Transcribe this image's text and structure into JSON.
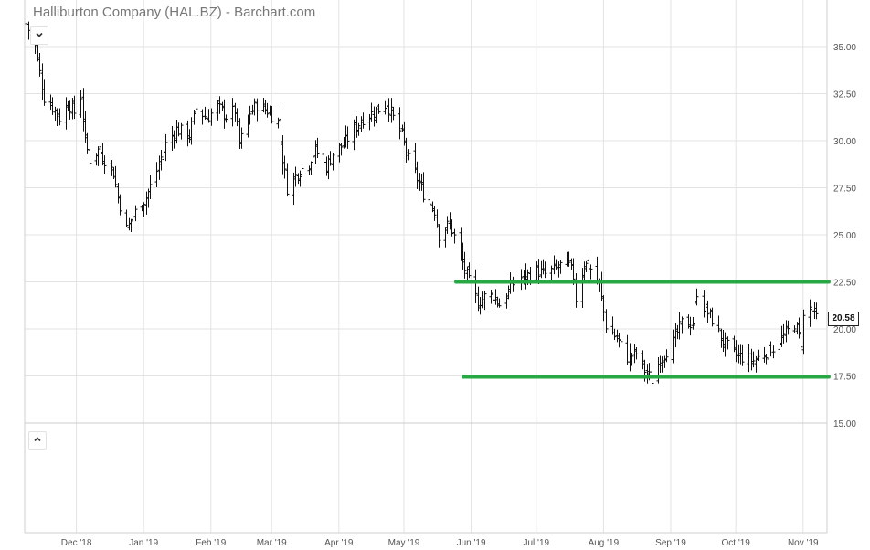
{
  "title": "Halliburton Company (HAL.BZ) - Barchart.com",
  "last_price_label": "20.58",
  "icons": {
    "collapse_top": "chevron-down-icon",
    "collapse_bottom": "chevron-up-icon"
  },
  "colors": {
    "support_resistance": "#27a844",
    "bars": "#111111",
    "grid": "#e3e3e3",
    "axis_text": "#555555"
  },
  "chart_data": {
    "type": "ohlc",
    "title": "Halliburton Company (HAL.BZ) - Barchart.com",
    "xlabel": "",
    "ylabel": "",
    "x_tick_labels": [
      "Dec '18",
      "Jan '19",
      "Feb '19",
      "Mar '19",
      "Apr '19",
      "May '19",
      "Jun '19",
      "Jul '19",
      "Aug '19",
      "Sep '19",
      "Oct '19",
      "Nov '19"
    ],
    "y_tick_labels": [
      "35.00",
      "32.50",
      "30.00",
      "27.50",
      "25.00",
      "22.50",
      "20.00",
      "17.50",
      "15.00"
    ],
    "ylim": [
      15,
      36.5
    ],
    "grid": true,
    "last_price": 20.58,
    "horizontal_lines": [
      {
        "value": 22.5,
        "from": "Jun '19"
      },
      {
        "value": 17.45,
        "from": "Jun '19"
      }
    ],
    "close_path": [
      [
        "2018-11-08",
        36.2
      ],
      [
        "2018-11-12",
        35.0
      ],
      [
        "2018-11-14",
        33.6
      ],
      [
        "2018-11-16",
        32.3
      ],
      [
        "2018-11-20",
        31.8
      ],
      [
        "2018-11-23",
        31.2
      ],
      [
        "2018-11-27",
        32.0
      ],
      [
        "2018-11-30",
        31.5
      ],
      [
        "2018-12-03",
        32.4
      ],
      [
        "2018-12-05",
        30.0
      ],
      [
        "2018-12-07",
        29.0
      ],
      [
        "2018-12-11",
        29.5
      ],
      [
        "2018-12-14",
        29.0
      ],
      [
        "2018-12-18",
        28.3
      ],
      [
        "2018-12-20",
        27.0
      ],
      [
        "2018-12-24",
        25.3
      ],
      [
        "2018-12-28",
        26.2
      ],
      [
        "2019-01-02",
        27.0
      ],
      [
        "2019-01-07",
        28.4
      ],
      [
        "2019-01-11",
        29.8
      ],
      [
        "2019-01-16",
        30.6
      ],
      [
        "2019-01-22",
        30.3
      ],
      [
        "2019-01-25",
        31.7
      ],
      [
        "2019-01-30",
        31.2
      ],
      [
        "2019-02-04",
        31.8
      ],
      [
        "2019-02-08",
        31.3
      ],
      [
        "2019-02-12",
        31.6
      ],
      [
        "2019-02-14",
        29.8
      ],
      [
        "2019-02-19",
        31.5
      ],
      [
        "2019-02-22",
        31.9
      ],
      [
        "2019-02-27",
        31.6
      ],
      [
        "2019-03-04",
        31.0
      ],
      [
        "2019-03-06",
        29.0
      ],
      [
        "2019-03-08",
        27.5
      ],
      [
        "2019-03-13",
        28.3
      ],
      [
        "2019-03-18",
        28.8
      ],
      [
        "2019-03-21",
        29.5
      ],
      [
        "2019-03-26",
        28.6
      ],
      [
        "2019-03-29",
        29.3
      ],
      [
        "2019-04-03",
        29.8
      ],
      [
        "2019-04-08",
        30.6
      ],
      [
        "2019-04-12",
        31.2
      ],
      [
        "2019-04-17",
        31.5
      ],
      [
        "2019-04-23",
        32.0
      ],
      [
        "2019-04-26",
        31.2
      ],
      [
        "2019-04-30",
        30.3
      ],
      [
        "2019-05-03",
        29.0
      ],
      [
        "2019-05-07",
        28.0
      ],
      [
        "2019-05-10",
        27.2
      ],
      [
        "2019-05-15",
        26.3
      ],
      [
        "2019-05-17",
        25.0
      ],
      [
        "2019-05-22",
        25.6
      ],
      [
        "2019-05-24",
        24.9
      ],
      [
        "2019-05-28",
        23.5
      ],
      [
        "2019-05-31",
        22.5
      ],
      [
        "2019-06-04",
        21.4
      ],
      [
        "2019-06-07",
        21.7
      ],
      [
        "2019-06-11",
        21.8
      ],
      [
        "2019-06-14",
        21.3
      ],
      [
        "2019-06-18",
        22.0
      ],
      [
        "2019-06-21",
        22.6
      ],
      [
        "2019-06-26",
        22.8
      ],
      [
        "2019-07-01",
        23.1
      ],
      [
        "2019-07-05",
        22.9
      ],
      [
        "2019-07-10",
        23.2
      ],
      [
        "2019-07-15",
        23.6
      ],
      [
        "2019-07-18",
        22.8
      ],
      [
        "2019-07-19",
        21.6
      ],
      [
        "2019-07-23",
        23.5
      ],
      [
        "2019-07-26",
        23.2
      ],
      [
        "2019-07-30",
        22.3
      ],
      [
        "2019-08-02",
        20.2
      ],
      [
        "2019-08-07",
        19.5
      ],
      [
        "2019-08-12",
        18.5
      ],
      [
        "2019-08-16",
        18.7
      ],
      [
        "2019-08-20",
        17.8
      ],
      [
        "2019-08-23",
        17.3
      ],
      [
        "2019-08-27",
        18.4
      ],
      [
        "2019-09-02",
        19.3
      ],
      [
        "2019-09-06",
        20.3
      ],
      [
        "2019-09-11",
        20.3
      ],
      [
        "2019-09-13",
        22.0
      ],
      [
        "2019-09-16",
        21.2
      ],
      [
        "2019-09-20",
        20.5
      ],
      [
        "2019-09-25",
        19.3
      ],
      [
        "2019-09-30",
        18.7
      ],
      [
        "2019-10-04",
        18.5
      ],
      [
        "2019-10-09",
        18.3
      ],
      [
        "2019-10-15",
        18.8
      ],
      [
        "2019-10-18",
        19.0
      ],
      [
        "2019-10-23",
        19.6
      ],
      [
        "2019-10-28",
        20.3
      ],
      [
        "2019-10-31",
        19.3
      ],
      [
        "2019-11-01",
        20.6
      ],
      [
        "2019-11-04",
        21.1
      ],
      [
        "2019-11-07",
        20.6
      ]
    ]
  }
}
